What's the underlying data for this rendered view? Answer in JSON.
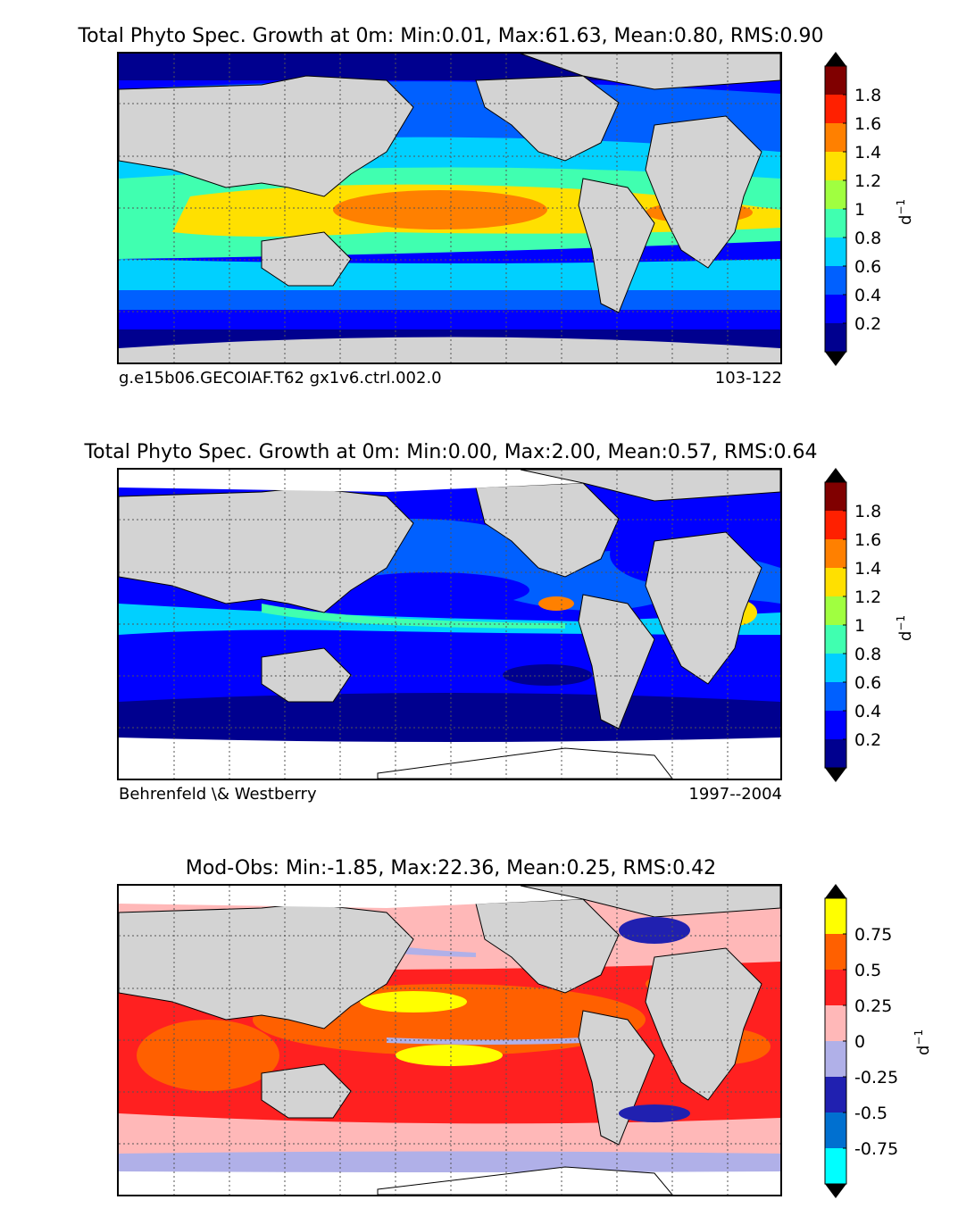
{
  "panels": [
    {
      "title": "Total Phyto Spec. Growth at 0m: Min:0.01, Max:61.63, Mean:0.80, RMS:0.90",
      "footer_left": "g.e15b06.GECOIAF.T62 gx1v6.ctrl.002.0",
      "footer_right": "103-122",
      "unit": "d",
      "unit_exp": "−1",
      "colorbar": {
        "colors": [
          "#00008f",
          "#0000ff",
          "#0060ff",
          "#00d0ff",
          "#40ffb0",
          "#a0ff40",
          "#ffe000",
          "#ff8000",
          "#ff2000",
          "#800000"
        ],
        "ticks": [
          "0.2",
          "0.4",
          "0.6",
          "0.8",
          "1",
          "1.2",
          "1.4",
          "1.6",
          "1.8"
        ],
        "under_color": "#000000",
        "over_color": "#000000"
      }
    },
    {
      "title": "Total Phyto Spec. Growth at 0m: Min:0.00, Max:2.00, Mean:0.57, RMS:0.64",
      "footer_left": "Behrenfeld \\& Westberry",
      "footer_right": "1997--2004",
      "unit": "d",
      "unit_exp": "−1",
      "colorbar": {
        "colors": [
          "#00008f",
          "#0000ff",
          "#0060ff",
          "#00d0ff",
          "#40ffb0",
          "#a0ff40",
          "#ffe000",
          "#ff8000",
          "#ff2000",
          "#800000"
        ],
        "ticks": [
          "0.2",
          "0.4",
          "0.6",
          "0.8",
          "1",
          "1.2",
          "1.4",
          "1.6",
          "1.8"
        ],
        "under_color": "#000000",
        "over_color": "#000000"
      }
    },
    {
      "title": "Mod-Obs: Min:-1.85, Max:22.36, Mean:0.25, RMS:0.42",
      "footer_left": "",
      "footer_right": "",
      "unit": "d",
      "unit_exp": "−1",
      "colorbar": {
        "colors": [
          "#00ffff",
          "#0070d0",
          "#2020b0",
          "#b0b0e8",
          "#ffb8b8",
          "#ff2020",
          "#ff6000",
          "#ffff00"
        ],
        "ticks": [
          "-0.75",
          "-0.5",
          "-0.25",
          "0",
          "0.25",
          "0.5",
          "0.75"
        ],
        "under_color": "#000000",
        "over_color": "#000000"
      }
    }
  ],
  "map": {
    "land_color": "#d3d3d3",
    "missing_color": "#ffffff",
    "grid_style": "dotted"
  }
}
